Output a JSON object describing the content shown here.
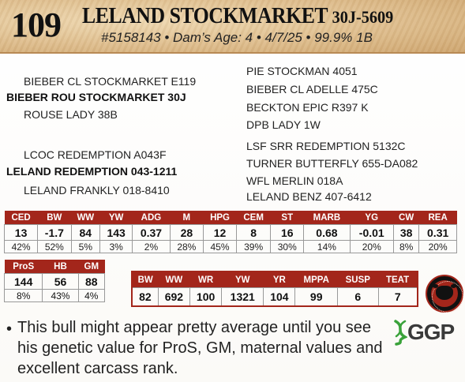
{
  "header": {
    "lot_number": "109",
    "bull_name": "LELAND STOCKMARKET",
    "tattoo": "30J-5609",
    "subtitle": "#5158143 • Dam’s Age: 4 • 4/7/25 • 99.9% 1B"
  },
  "pedigree": {
    "sire_side": {
      "sire_sire": "BIEBER CL STOCKMARKET E119",
      "sire": "BIEBER ROU STOCKMARKET 30J",
      "sire_dam": "ROUSE LADY 38B"
    },
    "dam_side": {
      "dam_sire": "LCOC REDEMPTION A043F",
      "dam": "LELAND REDEMPTION 043-1211",
      "dam_dam": "LELAND FRANKLY 018-8410"
    },
    "right_column": [
      "PIE STOCKMAN 4051",
      "BIEBER CL ADELLE 475C",
      "BECKTON EPIC R397 K",
      "DPB LADY 1W",
      "LSF SRR REDEMPTION 5132C",
      "TURNER BUTTERFLY 655-DA082",
      "WFL MERLIN 018A",
      "LELAND BENZ 407-6412"
    ]
  },
  "epd_table": {
    "headers": [
      "CED",
      "BW",
      "WW",
      "YW",
      "ADG",
      "M",
      "HPG",
      "CEM",
      "ST",
      "MARB",
      "YG",
      "CW",
      "REA"
    ],
    "values": [
      "13",
      "-1.7",
      "84",
      "143",
      "0.37",
      "28",
      "12",
      "8",
      "16",
      "0.68",
      "-0.01",
      "38",
      "0.31"
    ],
    "percentiles": [
      "42%",
      "52%",
      "5%",
      "3%",
      "2%",
      "28%",
      "45%",
      "39%",
      "30%",
      "14%",
      "20%",
      "8%",
      "20%"
    ]
  },
  "index_table": {
    "headers": [
      "ProS",
      "HB",
      "GM"
    ],
    "values": [
      "144",
      "56",
      "88"
    ],
    "percentiles": [
      "8%",
      "43%",
      "4%"
    ]
  },
  "actuals_table": {
    "headers": [
      "BW",
      "WW",
      "WR",
      "YW",
      "YR",
      "MPPA",
      "SUSP",
      "TEAT"
    ],
    "values": [
      "82",
      "692",
      "100",
      "1321",
      "104",
      "99",
      "6",
      "7"
    ]
  },
  "comment": "This bull might appear pretty average until you see his genetic value for ProS, GM, maternal values and excellent carcass rank.",
  "ggp_logo_text": "GGP",
  "colors": {
    "header_red": "#a3261b",
    "banner_tan": "#e2c394",
    "ggp_green": "#3aa23a"
  }
}
